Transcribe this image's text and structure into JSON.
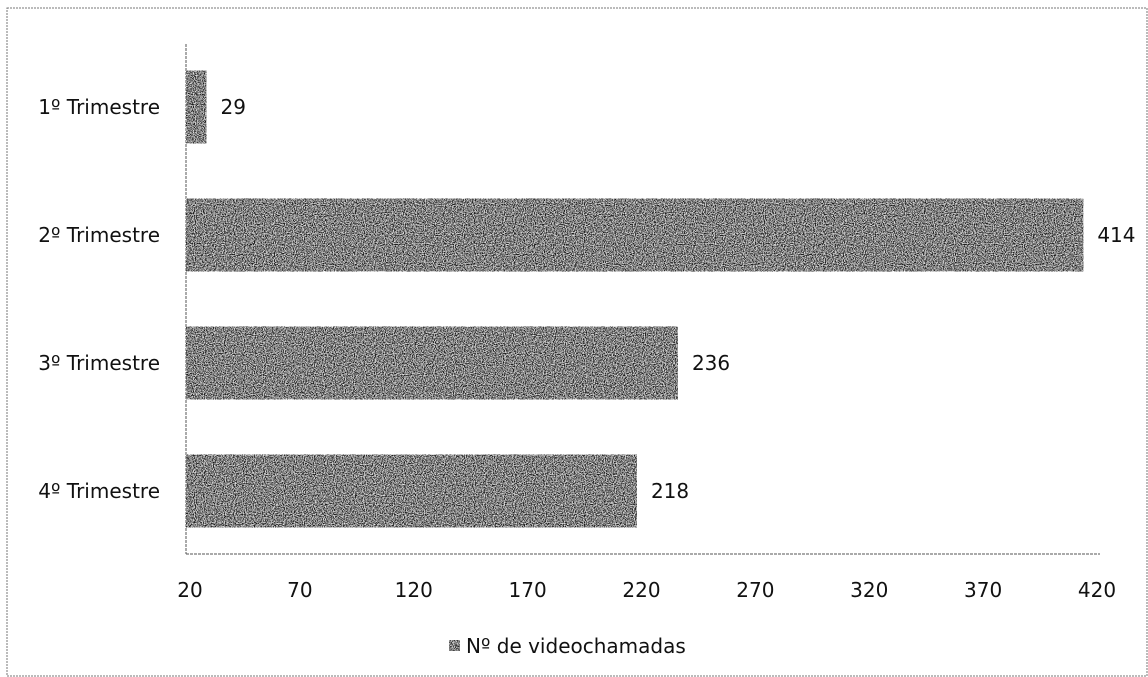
{
  "chart_data": {
    "type": "bar",
    "orientation": "horizontal",
    "categories": [
      "1º Trimestre",
      "2º Trimestre",
      "3º Trimestre",
      "4º Trimestre"
    ],
    "series": [
      {
        "name": "Nº de videochamadas",
        "values": [
          29,
          414,
          236,
          218
        ]
      }
    ],
    "value_labels": [
      "29",
      "414",
      "236",
      "218"
    ],
    "xlim": [
      20,
      420
    ],
    "xticks": [
      20,
      70,
      120,
      170,
      220,
      270,
      320,
      370,
      420
    ],
    "xtick_labels": [
      "20",
      "70",
      "120",
      "170",
      "220",
      "270",
      "320",
      "370",
      "420"
    ],
    "grid": false,
    "legend_position": "bottom",
    "bar_color": "#1a1a1a",
    "title": "",
    "xlabel": "",
    "ylabel": ""
  }
}
